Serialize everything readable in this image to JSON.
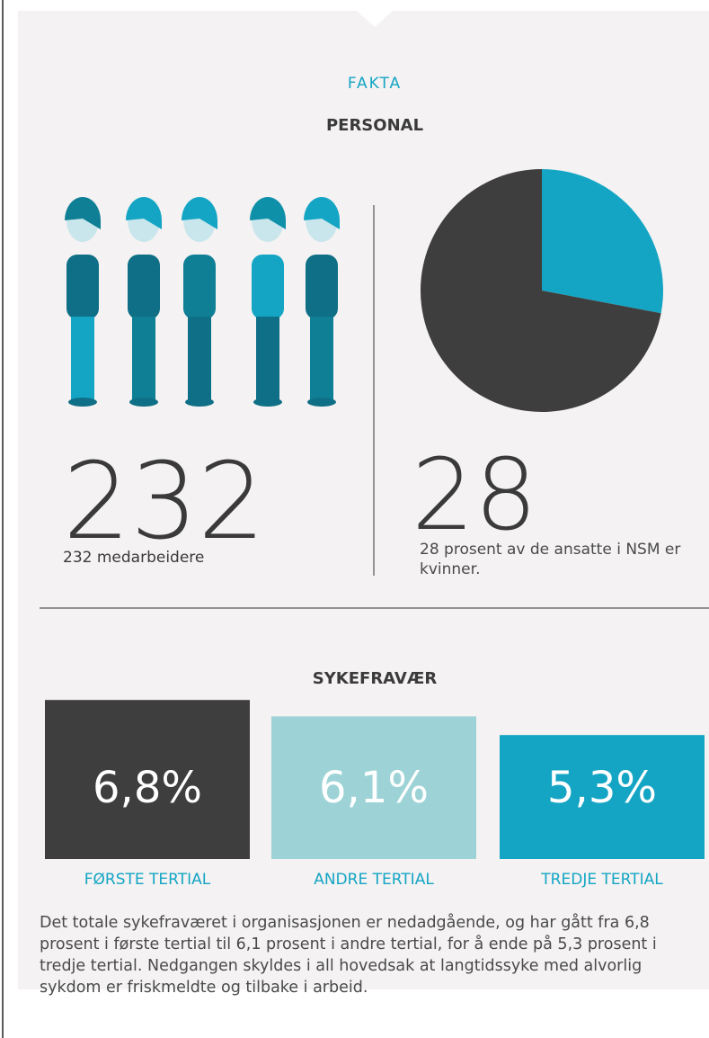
{
  "header": {
    "kicker": "FAKTA",
    "title": "PERSONAL"
  },
  "staff": {
    "count": 232,
    "caption": "232 medarbeidere"
  },
  "women_caption": "28 prosent av de ansatte i NSM er kvinner.",
  "chart_data": [
    {
      "type": "pie",
      "values": [
        28,
        72
      ],
      "colors": [
        "#14a5c4",
        "#3e3e3e"
      ]
    },
    {
      "type": "bar",
      "title": "SYKEFRAVÆR",
      "categories": [
        "FØRSTE TERTIAL",
        "ANDRE TERTIAL",
        "TREDJE TERTIAL"
      ],
      "values": [
        6.8,
        6.1,
        5.3
      ],
      "value_labels": [
        "6,8%",
        "6,1%",
        "5,3%"
      ],
      "colors": [
        "#3e3e3e",
        "#9dd3d6",
        "#14a5c4"
      ]
    }
  ],
  "description": "Det totale sykefraværet i organisasjonen er nedadgående, og har gått fra 6,8 prosent i første tertial til 6,1 prosent i andre tertial, for å ende på 5,3 prosent i tredje tertial. Nedgangen skyldes i all hovedsak at langtidssyke med alvorlig sykdom er friskmeldte og tilbake i arbeid."
}
